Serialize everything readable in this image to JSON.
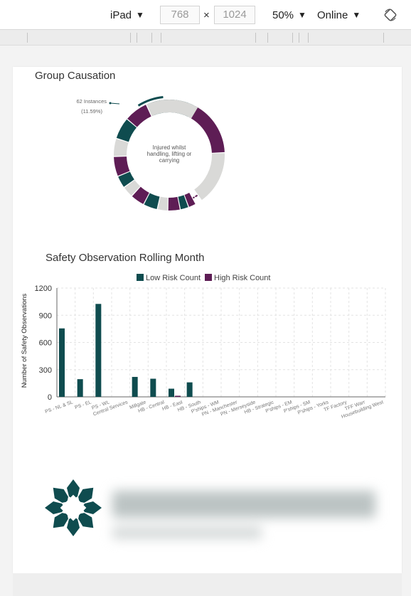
{
  "toolbar": {
    "device": "iPad",
    "width": "768",
    "times": "×",
    "height": "1024",
    "zoom": "50%",
    "network": "Online"
  },
  "icons": {
    "caret": "triangle-down-icon",
    "rotate": "rotate-icon"
  },
  "colors": {
    "low": "#0f4c4f",
    "high": "#5e1d55",
    "ring": "#d9d9d7"
  },
  "group_causation": {
    "title": "Group Causation",
    "callout_count": "62 Instances",
    "callout_pct": "(11.59%)",
    "center_label": [
      "Injured whilst",
      "handling, lifting or",
      "carrying"
    ]
  },
  "chart_data": {
    "type": "bar",
    "title": "Safety Observation Rolling Month",
    "ylabel": "Number of Safety Observations",
    "ylim": [
      0,
      1200
    ],
    "yticks": [
      "0",
      "300",
      "600",
      "900",
      "1200"
    ],
    "legend_position": "top",
    "categories": [
      "PS - NL & SL",
      "PS - EL",
      "PS - WL",
      "Central Services",
      "Millgate",
      "HB - Central",
      "HB - East",
      "HB - South",
      "P'ships - WM",
      "PN - Manchester",
      "PN - Merseyside",
      "HB - Strategic",
      "P'ships - EM",
      "P'ships - SM",
      "P'ships - Yorks",
      "TF Factory",
      "TFF Warr",
      "Housebuilding West"
    ],
    "series": [
      {
        "name": "Low Risk Count",
        "color": "#0f4c4f",
        "values": [
          755,
          195,
          1025,
          0,
          220,
          200,
          90,
          160,
          0,
          0,
          0,
          0,
          0,
          0,
          0,
          0,
          0,
          0
        ]
      },
      {
        "name": "High Risk Count",
        "color": "#5e1d55",
        "values": [
          0,
          0,
          0,
          0,
          0,
          0,
          12,
          0,
          0,
          0,
          0,
          0,
          0,
          0,
          0,
          0,
          0,
          0
        ]
      }
    ]
  }
}
